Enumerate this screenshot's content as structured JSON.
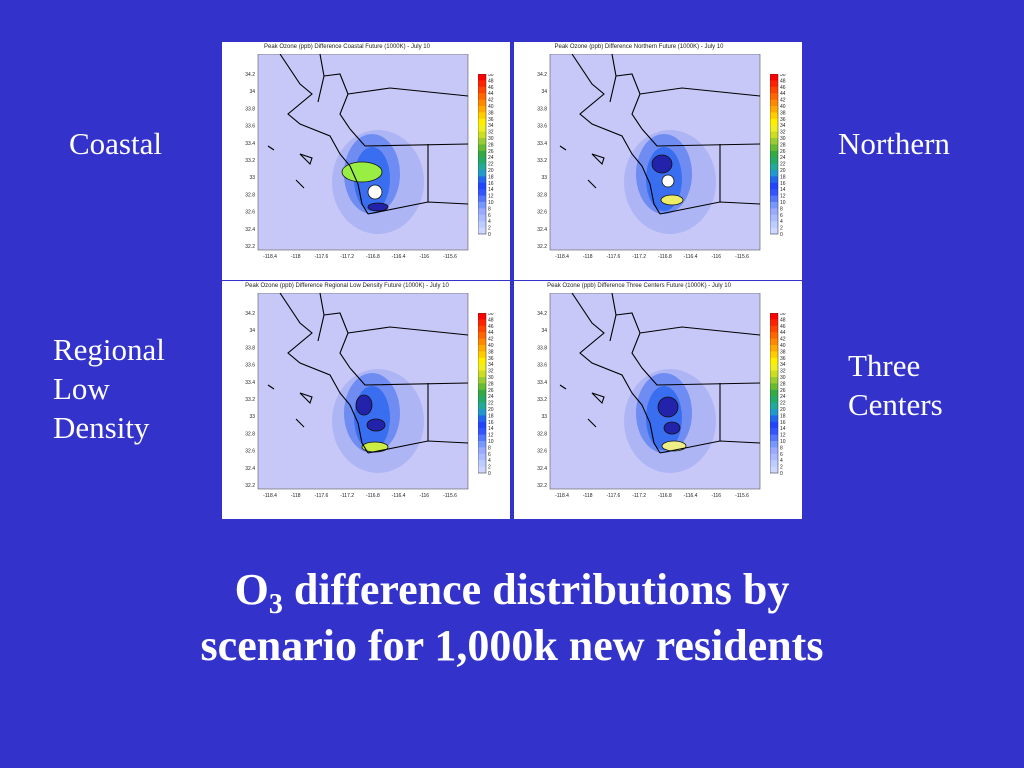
{
  "panels": [
    {
      "id": "coastal",
      "title": "Peak Ozone (ppb) Difference Coastal Future (1000K) - July 10"
    },
    {
      "id": "northern",
      "title": "Peak Ozone (ppb) Difference Northern Future (1000K) - July 10"
    },
    {
      "id": "regional",
      "title": "Peak Ozone (ppb) Difference Regional Low Density Future (1000K) - July 10"
    },
    {
      "id": "three",
      "title": "Peak Ozone (ppb) Difference Three Centers Future (1000K) - July 10"
    }
  ],
  "labels": {
    "coastal": "Coastal",
    "northern": "Northern",
    "regional_1": "Regional",
    "regional_2": "Low",
    "regional_3": "Density",
    "three_1": "Three",
    "three_2": "Centers"
  },
  "caption": {
    "line1_pre": "O",
    "line1_sub": "3",
    "line1_post": " difference distributions by",
    "line2": "scenario for 1,000k new residents"
  },
  "y_ticks": [
    "34.2",
    "34",
    "33.8",
    "33.6",
    "33.4",
    "33.2",
    "33",
    "32.8",
    "32.6",
    "32.4",
    "32.2"
  ],
  "x_ticks": [
    "-118.4",
    "-118",
    "-117.6",
    "-117.2",
    "-116.8",
    "-116.4",
    "-116",
    "-115.6"
  ],
  "colorbar_ticks": [
    "50",
    "48",
    "46",
    "44",
    "42",
    "40",
    "38",
    "36",
    "34",
    "32",
    "30",
    "28",
    "26",
    "24",
    "22",
    "20",
    "18",
    "16",
    "14",
    "12",
    "10",
    "8",
    "6",
    "4",
    "2",
    "0"
  ],
  "colors": {
    "background": "#3333cc",
    "map_fill": "#c8c8f8",
    "land_line": "#000000"
  }
}
